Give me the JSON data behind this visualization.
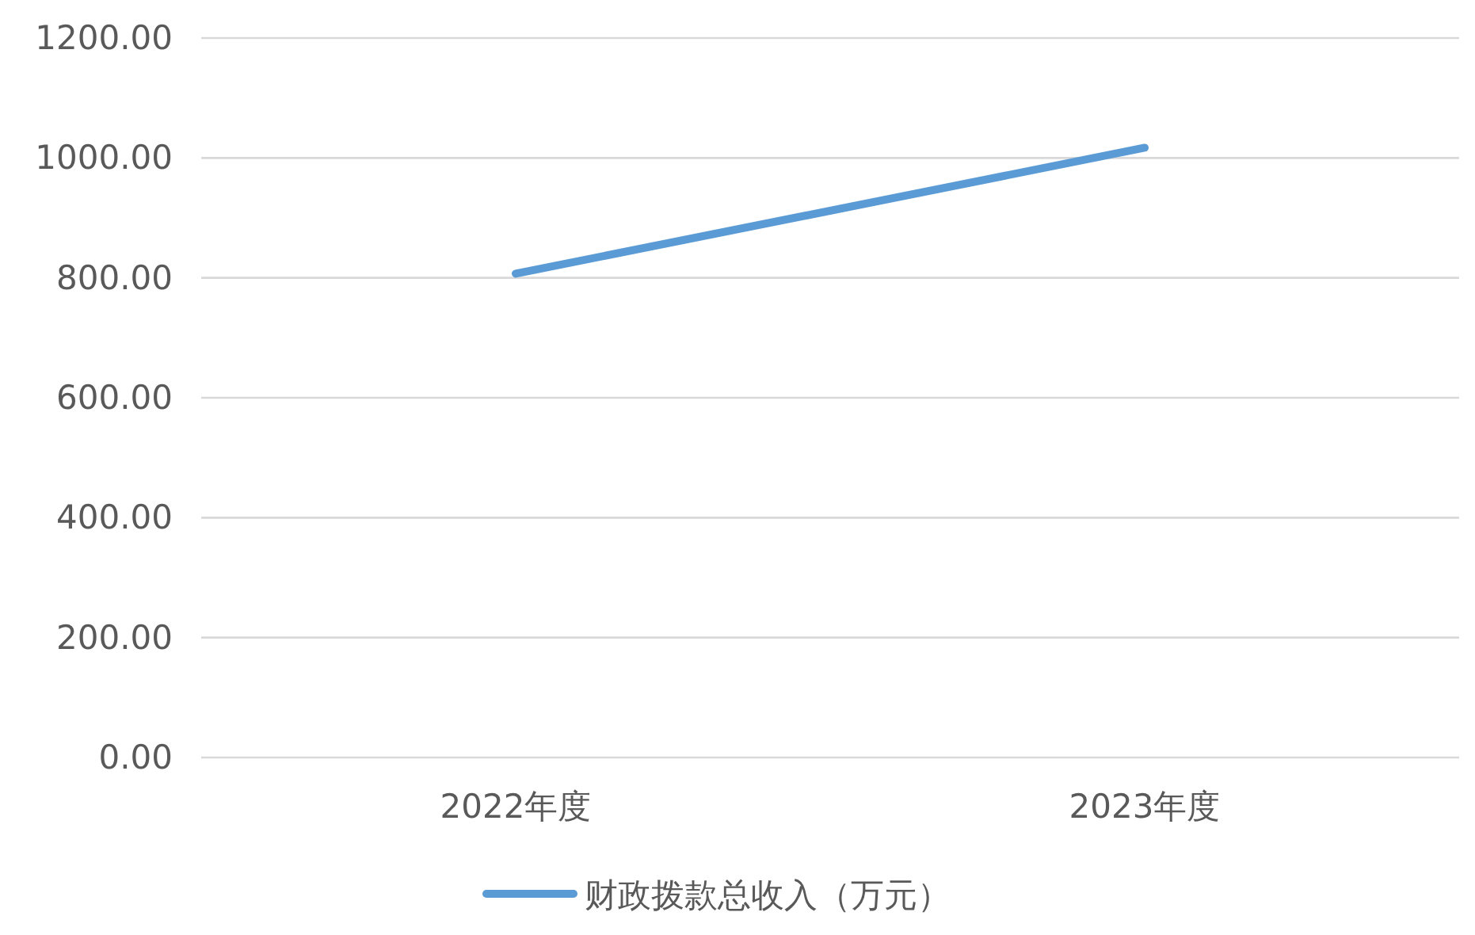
{
  "chart_data": {
    "type": "line",
    "categories": [
      "2022年度",
      "2023年度"
    ],
    "series": [
      {
        "name": "财政拨款总收入（万元）",
        "color": "#5b9bd5",
        "values": [
          807,
          1017
        ]
      }
    ],
    "ylim": [
      0,
      1200
    ],
    "yticks": [
      {
        "value": 0,
        "label": "0.00"
      },
      {
        "value": 200,
        "label": "200.00"
      },
      {
        "value": 400,
        "label": "400.00"
      },
      {
        "value": 600,
        "label": "600.00"
      },
      {
        "value": 800,
        "label": "800.00"
      },
      {
        "value": 1000,
        "label": "1000.00"
      },
      {
        "value": 1200,
        "label": "1200.00"
      }
    ],
    "grid": "y",
    "legend": "bottom",
    "marker": "none",
    "line_style": "solid"
  }
}
